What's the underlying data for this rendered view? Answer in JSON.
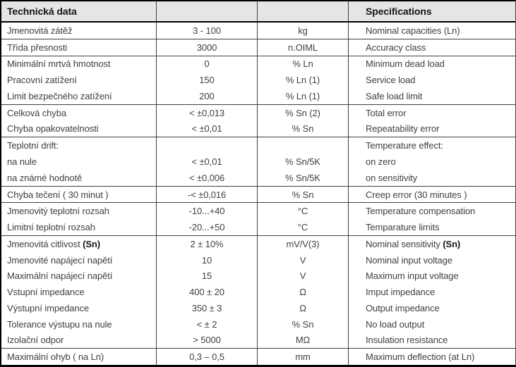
{
  "table": {
    "header": {
      "cz": "Technická data",
      "en": "Specifications"
    },
    "columns": [
      "czech-label",
      "value",
      "unit",
      "english-label"
    ],
    "rows": [
      {
        "cz": "Jmenovitá zátěž",
        "value": "3 - 100",
        "unit": "kg",
        "en": "Nominal capacities (Ln)",
        "group_end": true
      },
      {
        "cz": "Třída přesnosti",
        "value": "3000",
        "unit": "n.OIML",
        "en": "Accuracy class",
        "group_end": true
      },
      {
        "cz": "Minimální mrtvá hmotnost",
        "value": "0",
        "unit": "% Ln",
        "en": "Minimum dead load",
        "group_end": false
      },
      {
        "cz": "Pracovní zatížení",
        "value": "150",
        "unit": "% Ln (1)",
        "en": "Service load",
        "group_end": false
      },
      {
        "cz": "Limit bezpečného zatížení",
        "value": "200",
        "unit": "% Ln (1)",
        "en": "Safe load limit",
        "group_end": true
      },
      {
        "cz": "Celková chyba",
        "value": "< ±0,013",
        "unit": "% Sn (2)",
        "en": "Total error",
        "group_end": false
      },
      {
        "cz": "Chyba opakovatelnosti",
        "value": "< ±0,01",
        "unit": "% Sn",
        "en": "Repeatability error",
        "group_end": true
      },
      {
        "cz": "Teplotní drift:",
        "value": "",
        "unit": "",
        "en": "Temperature effect:",
        "group_end": false
      },
      {
        "cz": "na nule",
        "value": "< ±0,01",
        "unit": "% Sn/5K",
        "en": "on zero",
        "group_end": false
      },
      {
        "cz": "na známé hodnotě",
        "value": "< ±0,006",
        "unit": "% Sn/5K",
        "en": "on sensitivity",
        "group_end": true
      },
      {
        "cz": "Chyba tečení ( 30 minut )",
        "value": "-< ±0,016",
        "unit": "% Sn",
        "en": "Creep error (30 minutes )",
        "group_end": true
      },
      {
        "cz": "Jmenovitý teplotní rozsah",
        "value": "-10...+40",
        "unit": "°C",
        "en": "Temperature compensation",
        "group_end": false
      },
      {
        "cz": "Limitní teplotní rozsah",
        "value": "-20...+50",
        "unit": "°C",
        "en": "Temparature limits",
        "group_end": true
      },
      {
        "cz": "Jmenovitá citlivost ",
        "cz_bold": "(Sn)",
        "value": "2 ± 10%",
        "unit": "mV/V(3)",
        "en": "Nominal sensitivity ",
        "en_bold": "(Sn)",
        "group_end": false
      },
      {
        "cz": "Jmenovité napájecí napětí",
        "value": "10",
        "unit": "V",
        "en": "Nominal input voltage",
        "group_end": false
      },
      {
        "cz": "Maximální napájecí napětí",
        "value": "15",
        "unit": "V",
        "en": "Maximum input voltage",
        "group_end": false
      },
      {
        "cz": "Vstupní impedance",
        "value": "400 ± 20",
        "unit": "Ω",
        "en": "Imput impedance",
        "group_end": false
      },
      {
        "cz": "Výstupní impedance",
        "value": "350 ± 3",
        "unit": "Ω",
        "en": "Output impedance",
        "group_end": false
      },
      {
        "cz": "Tolerance výstupu na nule",
        "value": "< ± 2",
        "unit": "% Sn",
        "en": "No load output",
        "group_end": false
      },
      {
        "cz": "Izolační odpor",
        "value": "> 5000",
        "unit": "MΩ",
        "en": "Insulation resistance",
        "group_end": true
      },
      {
        "cz": "Maximální ohyb ( na Ln)",
        "value": "0,3 – 0,5",
        "unit": "mm",
        "en": "Maximum deflection (at Ln)",
        "group_end": false
      }
    ]
  },
  "colors": {
    "header_background": "#e5e5e8",
    "border_outer": "#000000",
    "grid_line": "#3f3f3f",
    "text": "#3f3f3f",
    "text_bold": "#141414"
  }
}
